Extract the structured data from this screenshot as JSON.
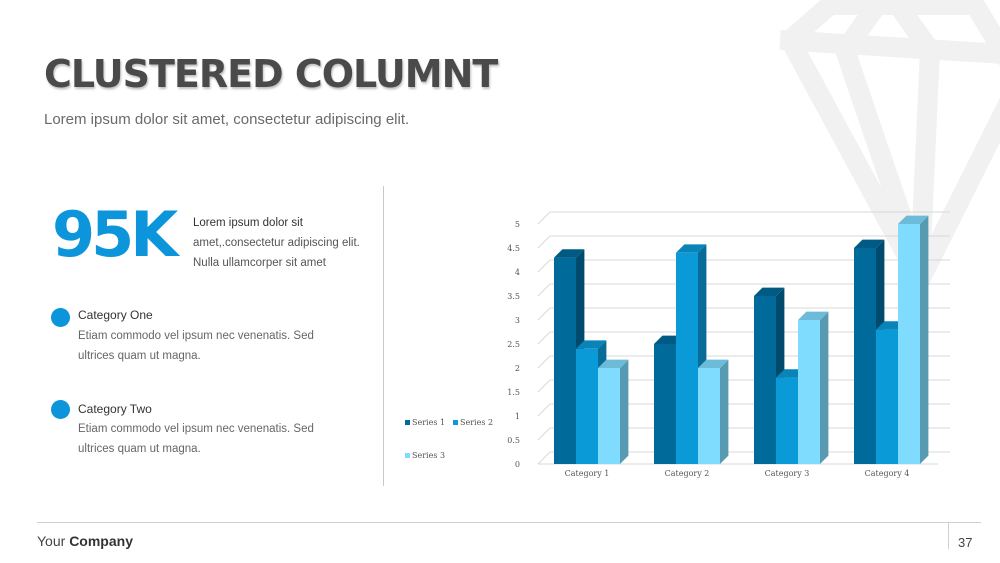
{
  "slide": {
    "title": "CLUSTERED COLUMNT",
    "subtitle": "Lorem ipsum dolor sit amet, consectetur adipiscing elit.",
    "page_number": "37"
  },
  "stat": {
    "value": "95K",
    "line1": "Lorem ipsum dolor sit",
    "line2": "amet,.consectetur adipiscing elit.",
    "line3": "Nulla ullamcorper sit amet"
  },
  "categories_list": [
    {
      "title": "Category One",
      "desc_line1": "Etiam commodo vel ipsum nec venenatis. Sed",
      "desc_line2": "ultrices quam ut magna."
    },
    {
      "title": "Category Two",
      "desc_line1": "Etiam commodo vel ipsum nec venenatis. Sed",
      "desc_line2": "ultrices quam ut magna."
    }
  ],
  "footer": {
    "prefix": "Your",
    "company": "Company"
  },
  "colors": {
    "accent": "#0d95dc",
    "series1": "#006a9b",
    "series2": "#0b9ad8",
    "series3": "#7fdcff"
  },
  "icons": {
    "background": "diamond-icon",
    "bullet": "circle-bullet-icon"
  },
  "chart_data": {
    "type": "bar",
    "title": "",
    "xlabel": "",
    "ylabel": "",
    "categories": [
      "Category 1",
      "Category 2",
      "Category 3",
      "Category 4"
    ],
    "series": [
      {
        "name": "Series 1",
        "values": [
          4.3,
          2.5,
          3.5,
          4.5
        ]
      },
      {
        "name": "Series 2",
        "values": [
          2.4,
          4.4,
          1.8,
          2.8
        ]
      },
      {
        "name": "Series 3",
        "values": [
          2.0,
          2.0,
          3.0,
          5.0
        ]
      }
    ],
    "ylim": [
      0,
      5
    ],
    "yticks": [
      "0",
      "0.5",
      "1",
      "1.5",
      "2",
      "2.5",
      "3",
      "3.5",
      "4",
      "4.5",
      "5"
    ],
    "grid": true,
    "legend_position": "left",
    "style": "3d-clustered-column"
  }
}
